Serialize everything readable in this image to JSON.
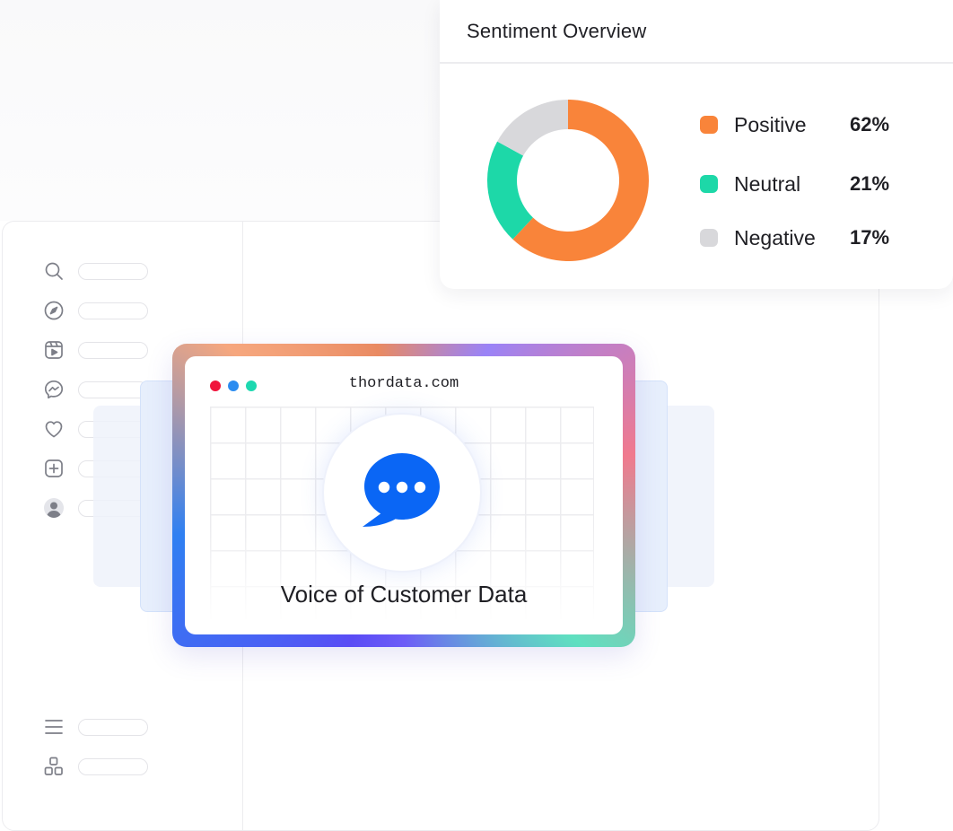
{
  "sentiment": {
    "title": "Sentiment Overview",
    "items": [
      {
        "label": "Positive",
        "value": "62%",
        "color": "#f9843a"
      },
      {
        "label": "Neutral",
        "value": "21%",
        "color": "#1dd8a8"
      },
      {
        "label": "Negative",
        "value": "17%",
        "color": "#d8d8db"
      }
    ]
  },
  "chart_data": {
    "type": "pie",
    "categories": [
      "Positive",
      "Neutral",
      "Negative"
    ],
    "values": [
      62,
      21,
      17
    ],
    "colors": [
      "#f9843a",
      "#1dd8a8",
      "#d8d8db"
    ],
    "title": "Sentiment Overview",
    "legend": "right"
  },
  "voc": {
    "url": "thordata.com",
    "title": "Voice of Customer Data",
    "dot_colors": [
      "#f0143c",
      "#2b8cf0",
      "#1dd8b0"
    ],
    "chat_color": "#0a66f5"
  },
  "sidebar": {
    "items": [
      {
        "icon": "search-icon"
      },
      {
        "icon": "compass-icon"
      },
      {
        "icon": "video-icon"
      },
      {
        "icon": "messenger-icon"
      },
      {
        "icon": "heart-icon"
      },
      {
        "icon": "plus-square-icon"
      },
      {
        "icon": "user-icon"
      },
      {
        "icon": "menu-icon"
      },
      {
        "icon": "grid-icon"
      }
    ]
  }
}
